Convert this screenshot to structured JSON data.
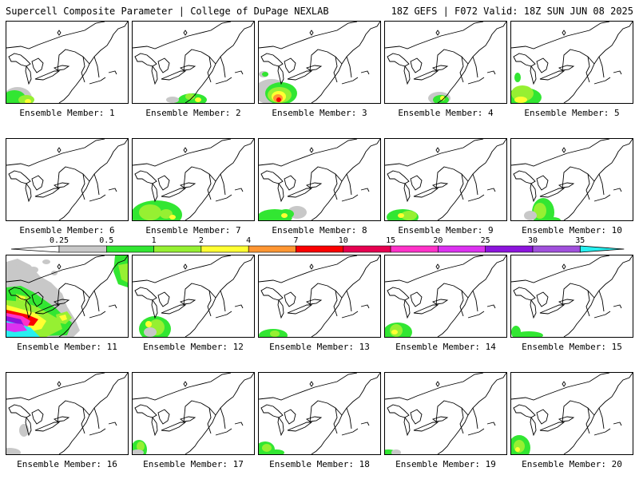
{
  "header": {
    "title_left": "Supercell Composite Parameter | College of DuPage NEXLAB",
    "title_right": "18Z GEFS | F072 Valid: 18Z SUN JUN 08 2025"
  },
  "panels": [
    {
      "label": "Ensemble Member: 1",
      "intensity": "low-moderate"
    },
    {
      "label": "Ensemble Member: 2",
      "intensity": "low"
    },
    {
      "label": "Ensemble Member: 3",
      "intensity": "moderate-high"
    },
    {
      "label": "Ensemble Member: 4",
      "intensity": "low"
    },
    {
      "label": "Ensemble Member: 5",
      "intensity": "low-moderate"
    },
    {
      "label": "Ensemble Member: 6",
      "intensity": "none"
    },
    {
      "label": "Ensemble Member: 7",
      "intensity": "low"
    },
    {
      "label": "Ensemble Member: 8",
      "intensity": "low"
    },
    {
      "label": "Ensemble Member: 9",
      "intensity": "low"
    },
    {
      "label": "Ensemble Member: 10",
      "intensity": "low"
    },
    {
      "label": "Ensemble Member: 11",
      "intensity": "extreme"
    },
    {
      "label": "Ensemble Member: 12",
      "intensity": "low-moderate"
    },
    {
      "label": "Ensemble Member: 13",
      "intensity": "low"
    },
    {
      "label": "Ensemble Member: 14",
      "intensity": "low"
    },
    {
      "label": "Ensemble Member: 15",
      "intensity": "low"
    },
    {
      "label": "Ensemble Member: 16",
      "intensity": "very-low"
    },
    {
      "label": "Ensemble Member: 17",
      "intensity": "low"
    },
    {
      "label": "Ensemble Member: 18",
      "intensity": "low"
    },
    {
      "label": "Ensemble Member: 19",
      "intensity": "low"
    },
    {
      "label": "Ensemble Member: 20",
      "intensity": "low"
    }
  ],
  "colorbar": {
    "ticks": [
      "0.25",
      "0.5",
      "1",
      "2",
      "4",
      "7",
      "10",
      "15",
      "20",
      "25",
      "30",
      "35"
    ],
    "colors": [
      "#c8c8c8",
      "#32e632",
      "#96f032",
      "#ffff32",
      "#ff9632",
      "#fa0000",
      "#e60050",
      "#ff32c8",
      "#dc32f0",
      "#8c14dc",
      "#a050dc",
      "#28f0f0"
    ]
  }
}
